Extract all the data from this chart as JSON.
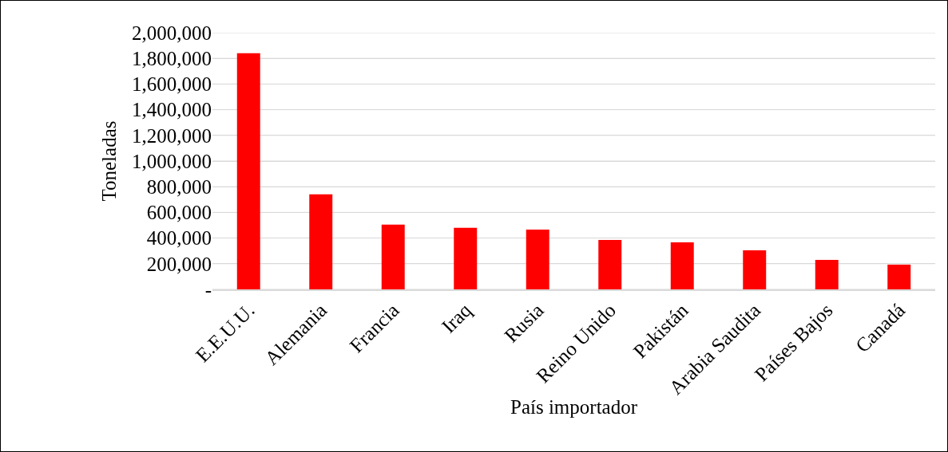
{
  "chart_data": {
    "type": "bar",
    "xlabel": "País importador",
    "ylabel": "Toneladas",
    "categories": [
      "E.E.U.U.",
      "Alemania",
      "Francia",
      "Iraq",
      "Rusia",
      "Reino Unido",
      "Pakistán",
      "Arabia Saudita",
      "Países Bajos",
      "Canadá"
    ],
    "values": [
      1840000,
      740000,
      505000,
      480000,
      466000,
      385000,
      366000,
      304000,
      230000,
      193000
    ],
    "color": "#ff0000",
    "ylim": [
      0,
      2000000
    ],
    "yticks": [
      {
        "value": 0,
        "label": "-"
      },
      {
        "value": 200000,
        "label": "200,000"
      },
      {
        "value": 400000,
        "label": "400,000"
      },
      {
        "value": 600000,
        "label": "600,000"
      },
      {
        "value": 800000,
        "label": "800,000"
      },
      {
        "value": 1000000,
        "label": "1,000,000"
      },
      {
        "value": 1200000,
        "label": "1,200,000"
      },
      {
        "value": 1400000,
        "label": "1,400,000"
      },
      {
        "value": 1600000,
        "label": "1,600,000"
      },
      {
        "value": 1800000,
        "label": "1,800,000"
      },
      {
        "value": 2000000,
        "label": "2,000,000"
      }
    ],
    "grid": "y"
  }
}
